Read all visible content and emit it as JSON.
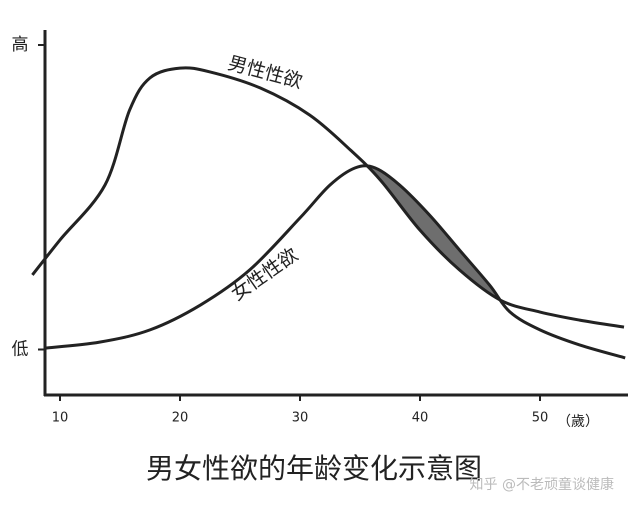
{
  "chart_data": {
    "type": "line",
    "title": "男女性欲的年龄变化示意图",
    "x_label": "（歲）",
    "watermark": "知乎 @不老顽童谈健康",
    "xlim": [
      7.5,
      57.5
    ],
    "xticks": [
      10,
      20,
      30,
      40,
      50
    ],
    "ylim": [
      0,
      100
    ],
    "yticks": [
      {
        "value": 13,
        "label": "低"
      },
      {
        "value": 100,
        "label": "高"
      }
    ],
    "overlap_color": "#6e6e6e",
    "series": [
      {
        "name": "男性性欲",
        "color": "#222222",
        "x": [
          7.7,
          10,
          13.75,
          15.8,
          17.5,
          20,
          22.5,
          26.7,
          30.8,
          34.2,
          36.7,
          40,
          43.3,
          46.7,
          50,
          53.3,
          57
        ],
        "values": [
          34.3,
          44.3,
          60,
          81.4,
          90.6,
          93.4,
          92.3,
          87.7,
          80,
          70,
          61.4,
          47.1,
          35.7,
          27.1,
          23.7,
          21.4,
          19.4
        ]
      },
      {
        "name": "女性性欲",
        "color": "#222222",
        "x": [
          8.75,
          13.3,
          17.5,
          21.7,
          25.8,
          30,
          32.5,
          34.6,
          36.25,
          38.3,
          40.8,
          43.3,
          45.8,
          47.5,
          50,
          53.3,
          57.1
        ],
        "values": [
          13.4,
          15.1,
          18.6,
          25.7,
          35.7,
          50.6,
          60,
          64.9,
          64.9,
          60,
          51.4,
          41.4,
          31.4,
          23.7,
          18.6,
          14.3,
          10.6
        ]
      }
    ]
  }
}
